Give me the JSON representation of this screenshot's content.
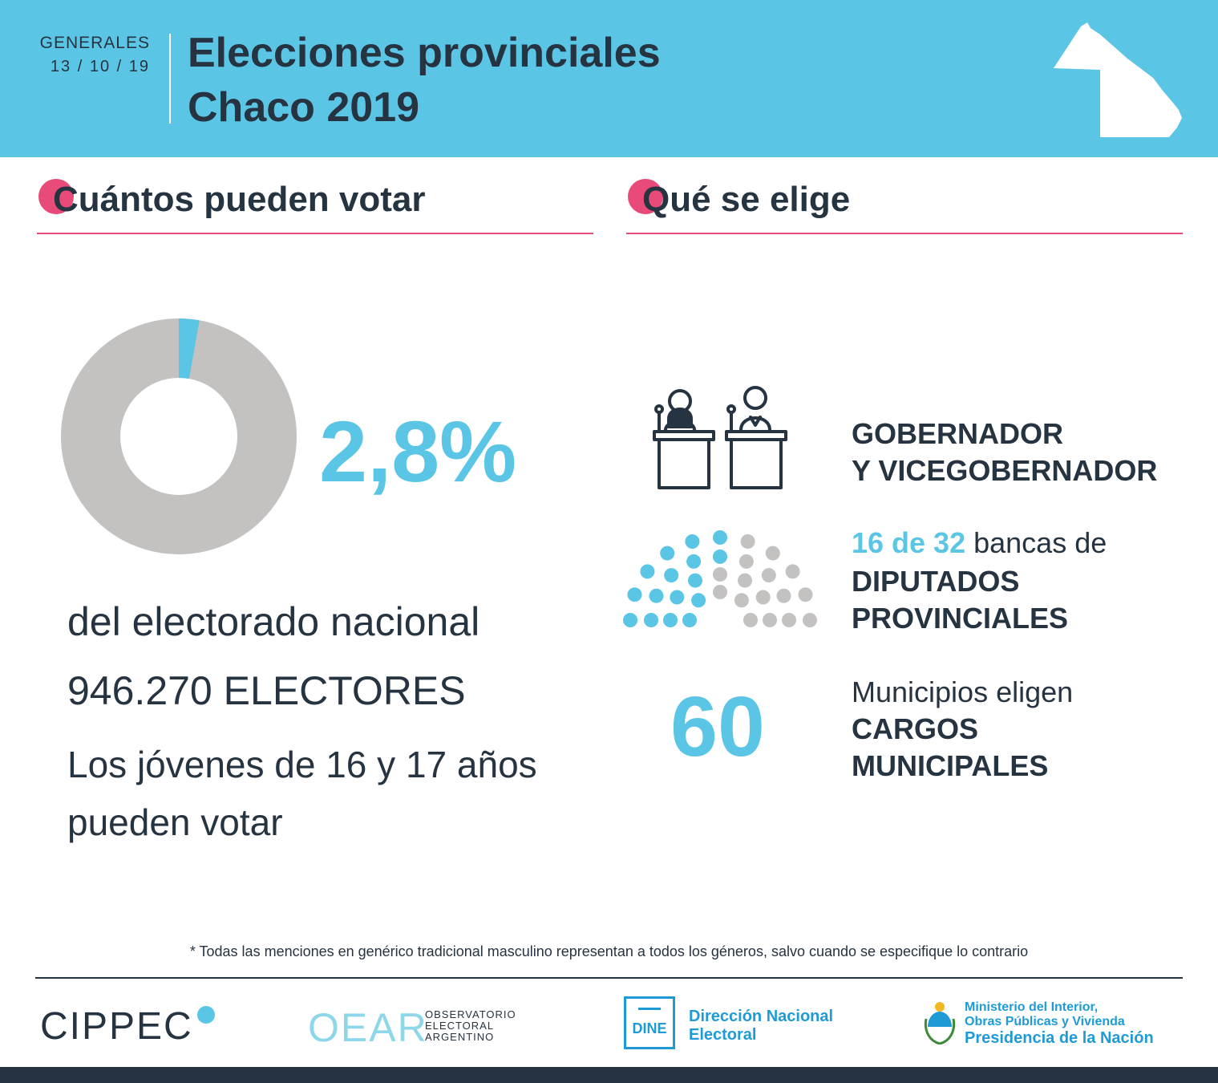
{
  "header": {
    "label": "GENERALES",
    "date": "13 / 10 / 19",
    "title_line1": "Elecciones provinciales",
    "title_line2": "Chaco 2019",
    "map_icon": "chaco-province-map-icon"
  },
  "left_section": {
    "title": "Cuántos pueden votar",
    "percentage_text": "2,8%",
    "percentage_value": 2.8,
    "line1": "del electorado nacional",
    "electores_number": "946.270",
    "electores_label": "ELECTORES",
    "jovenes_line1": "Los jóvenes de 16 y 17 años",
    "jovenes_line2": "pueden votar"
  },
  "right_section": {
    "title": "Qué se elige",
    "governor_line1": "GOBERNADOR",
    "governor_line2": "Y VICEGOBERNADOR",
    "bancas_seats": "16 de 32",
    "bancas_text": " bancas de",
    "seats_elected": 16,
    "seats_total": 32,
    "diputados_line1": "DIPUTADOS",
    "diputados_line2": "PROVINCIALES",
    "municipios_number": "60",
    "municipios_text": "Municipios eligen",
    "cargos_line1": "CARGOS",
    "cargos_line2": "MUNICIPALES"
  },
  "colors": {
    "accent": "#5bc5e6",
    "pink": "#e84a7a",
    "dark": "#263340",
    "gray": "#c4c1c1",
    "blue": "#1e9bd7"
  },
  "footer": {
    "footnote": "* Todas las menciones en genérico tradicional masculino representan a todos los géneros, salvo cuando se especifique lo contrario",
    "cippec": "CIPPEC",
    "oear": "OEAR",
    "oear_sub1": "OBSERVATORIO",
    "oear_sub2": "ELECTORAL",
    "oear_sub3": "ARGENTINO",
    "dine": "DINE",
    "dine_name1": "Dirección Nacional",
    "dine_name2": "Electoral",
    "ministerio1": "Ministerio del Interior,",
    "ministerio2": "Obras Públicas y Vivienda",
    "presidencia": "Presidencia de la Nación"
  }
}
